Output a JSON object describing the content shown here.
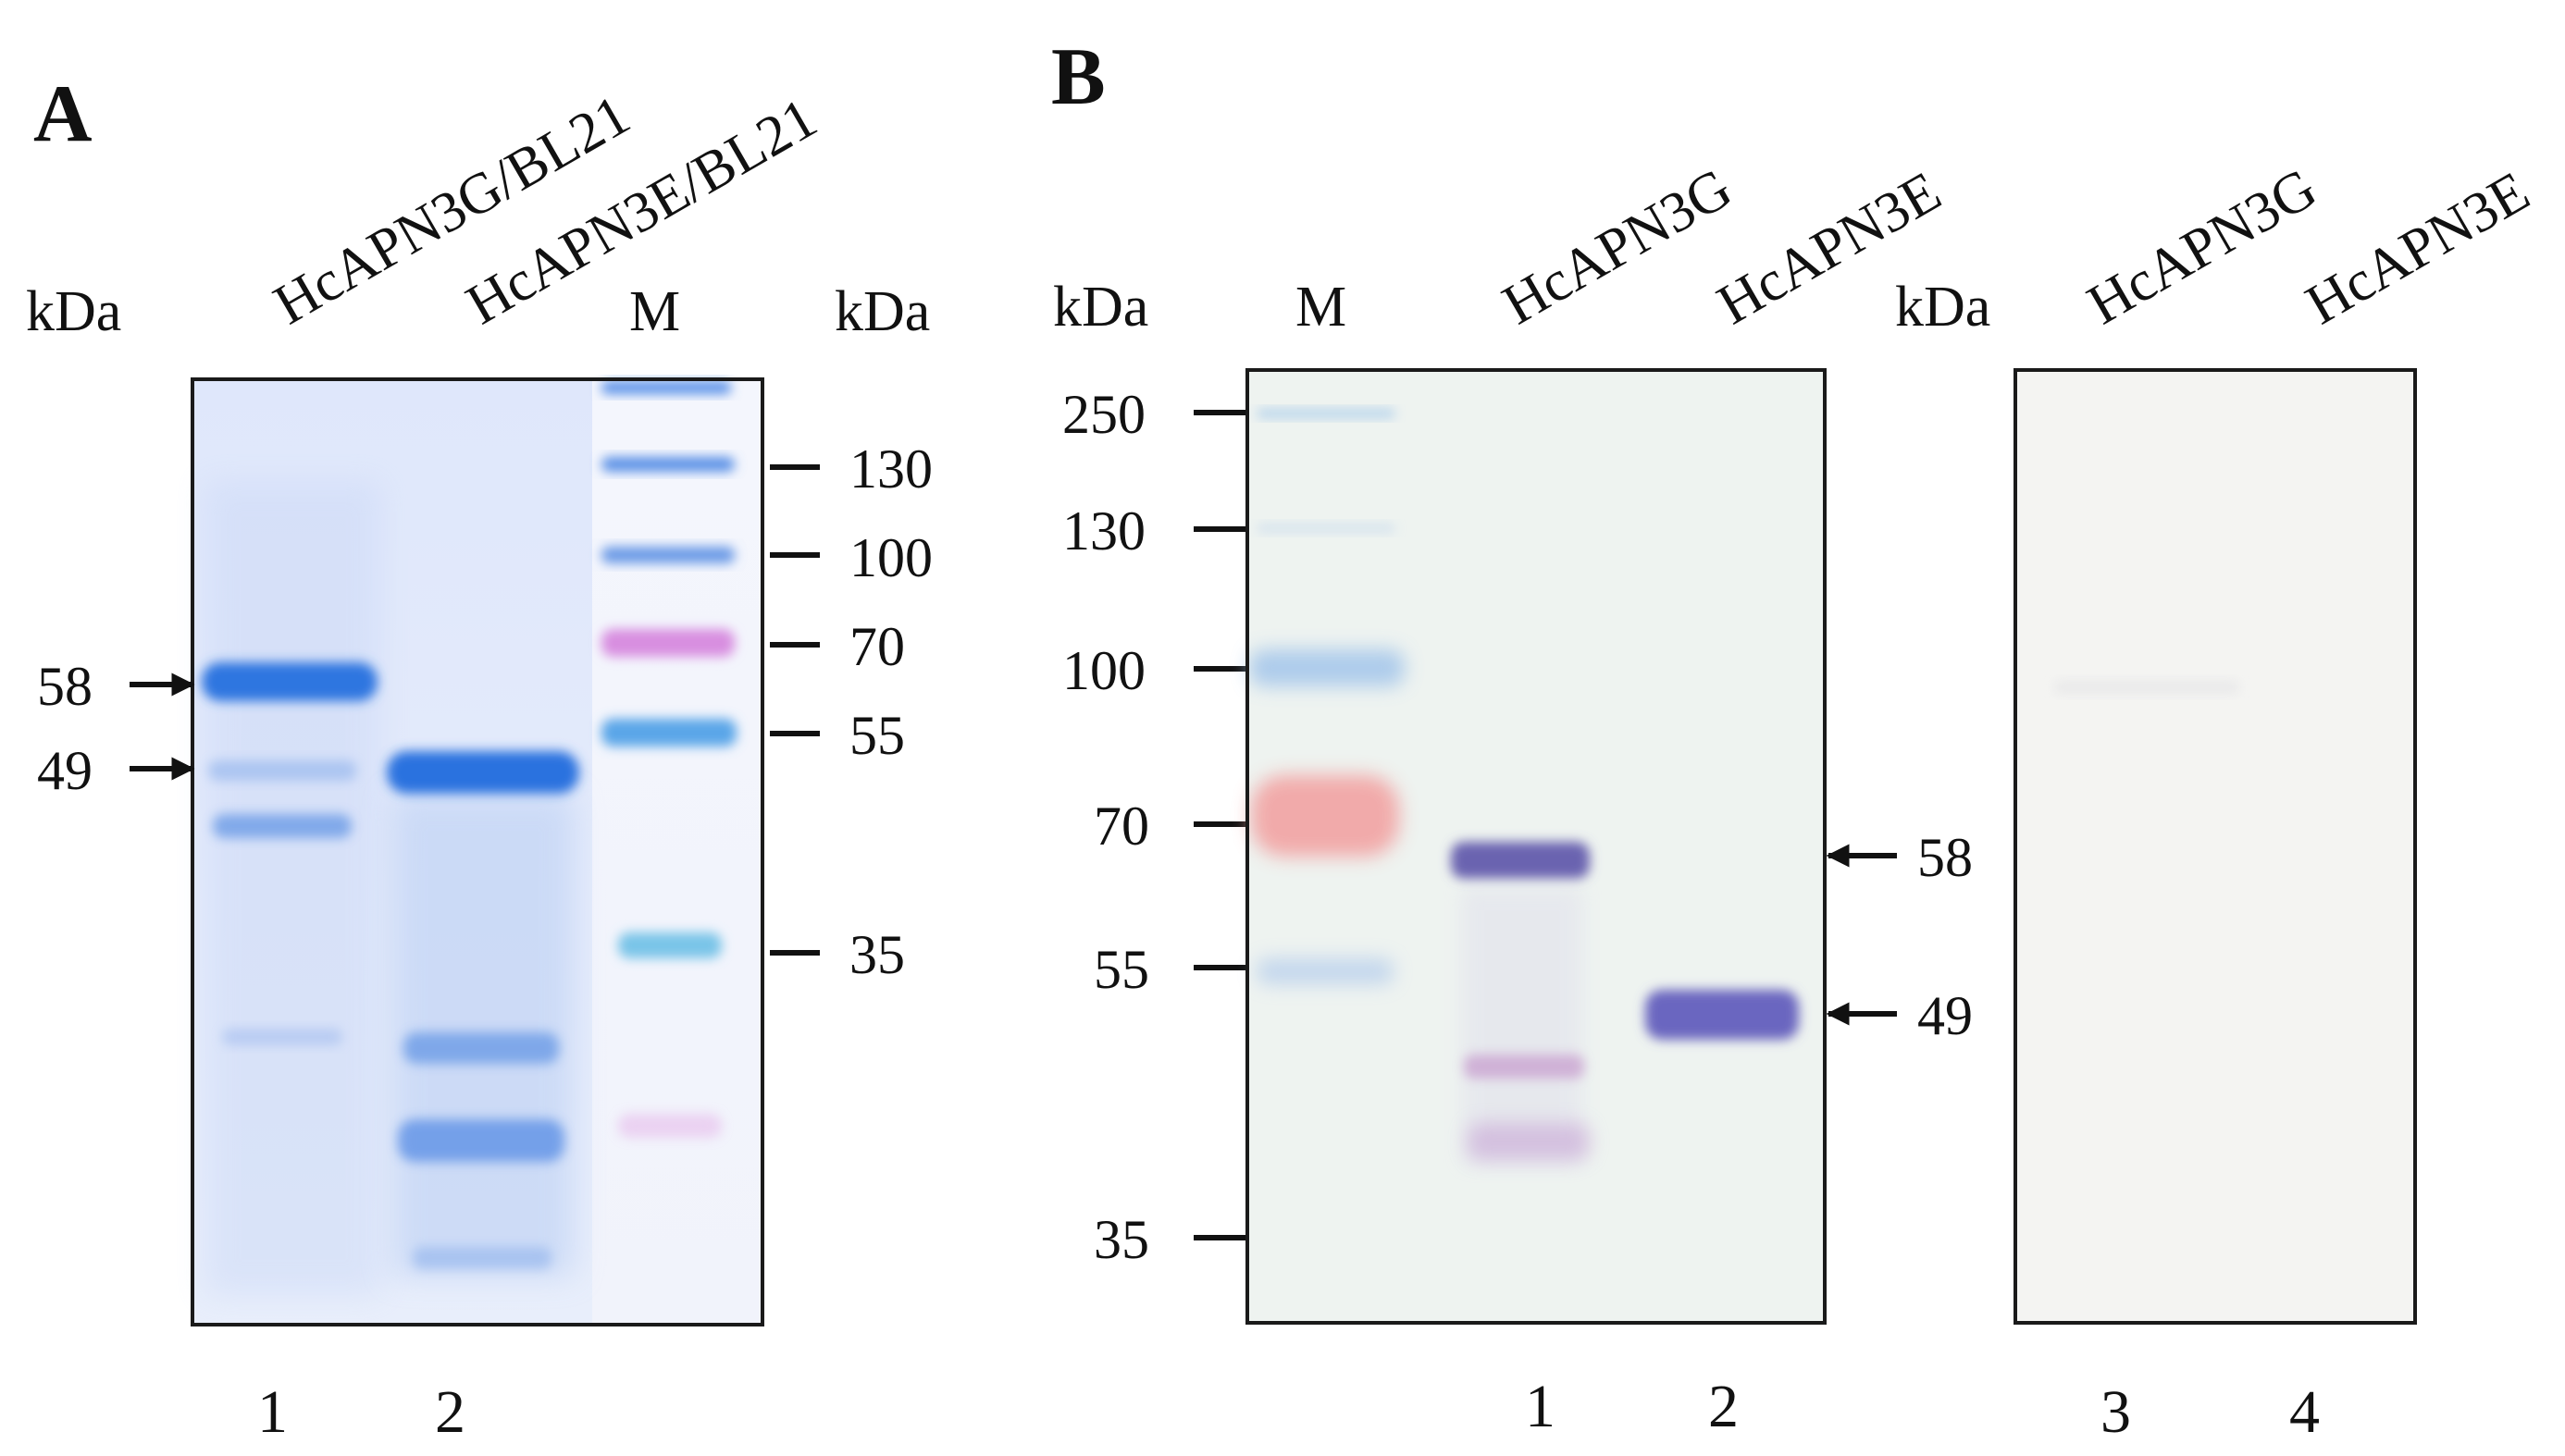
{
  "panel_a": {
    "letter": "A",
    "kda_left": "kDa",
    "kda_right": "kDa",
    "lane_headers": [
      "HcAPN3G/BL21",
      "HcAPN3E/BL21",
      "M"
    ],
    "marker_sizes": [
      "130",
      "100",
      "70",
      "55",
      "35"
    ],
    "arrow_sizes": [
      "58",
      "49"
    ],
    "lane_numbers": [
      "1",
      "2"
    ]
  },
  "panel_b": {
    "letter": "B",
    "kda_left": "kDa",
    "kda_right": "kDa",
    "lane_headers_left": [
      "M",
      "HcAPN3G",
      "HcAPN3E"
    ],
    "lane_headers_right": [
      "HcAPN3G",
      "HcAPN3E"
    ],
    "marker_sizes": [
      "250",
      "130",
      "100",
      "70",
      "55",
      "35"
    ],
    "arrow_sizes": [
      "58",
      "49"
    ],
    "lane_numbers_left": [
      "1",
      "2"
    ],
    "lane_numbers_right": [
      "3",
      "4"
    ]
  },
  "colors": {
    "gel_a_background": "#e4ebfa",
    "coomassie_band": "#3a7de0",
    "blot_background": "#eef3f0",
    "blot_band": "#6b64b0",
    "marker_red": "#f2a3a3",
    "control_blot_background": "#f4f4f2"
  }
}
